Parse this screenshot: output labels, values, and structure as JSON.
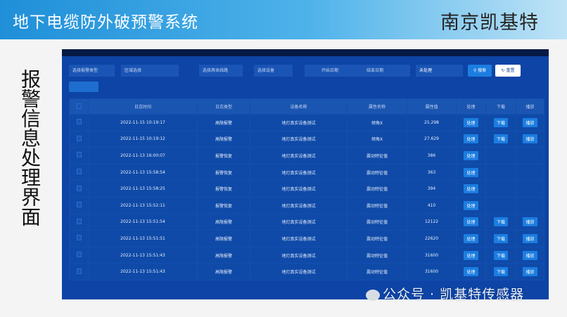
{
  "header": {
    "title": "地下电缆防外破预警系统",
    "brand": "南京凯基特"
  },
  "side_title": "报警信息处理界面",
  "filters": {
    "alarm_type": "选择报警类型",
    "region": "区域选择",
    "line": "选择具体线路",
    "device": "选择设备",
    "start_date": "开始日期",
    "end_date": "结束日期",
    "status": "未处理",
    "search": "搜索",
    "reset": "重置"
  },
  "table": {
    "columns": [
      "",
      "日志时间",
      "日志类型",
      "设备名称",
      "属性名称",
      "属性值",
      "处理",
      "下载",
      "播放"
    ],
    "action_labels": {
      "process": "处理",
      "download": "下载",
      "play": "播放"
    },
    "rows": [
      {
        "time": "2022-11-15 10:19:17",
        "type": "高限报警",
        "device": "地灯真实设备测试",
        "attr": "倾角X",
        "value": "25.298",
        "download": true
      },
      {
        "time": "2022-11-15 10:19:12",
        "type": "高限报警",
        "device": "地灯真实设备测试",
        "attr": "倾角X",
        "value": "27.629",
        "download": true
      },
      {
        "time": "2022-11-13 16:00:07",
        "type": "报警恢复",
        "device": "地灯真实设备测试",
        "attr": "震动特征值",
        "value": "386",
        "download": false
      },
      {
        "time": "2022-11-13 15:58:54",
        "type": "报警恢复",
        "device": "地灯真实设备测试",
        "attr": "震动特征值",
        "value": "363",
        "download": false
      },
      {
        "time": "2022-11-13 15:58:25",
        "type": "报警恢复",
        "device": "地灯真实设备测试",
        "attr": "震动特征值",
        "value": "394",
        "download": false
      },
      {
        "time": "2022-11-13 15:52:11",
        "type": "报警恢复",
        "device": "地灯真实设备测试",
        "attr": "震动特征值",
        "value": "410",
        "download": false
      },
      {
        "time": "2022-11-13 15:51:54",
        "type": "高限报警",
        "device": "地灯真实设备测试",
        "attr": "震动特征值",
        "value": "12122",
        "download": true
      },
      {
        "time": "2022-11-13 15:51:51",
        "type": "高限报警",
        "device": "地灯真实设备测试",
        "attr": "震动特征值",
        "value": "22620",
        "download": true
      },
      {
        "time": "2022-11-13 15:51:43",
        "type": "高限报警",
        "device": "地灯真实设备测试",
        "attr": "震动特征值",
        "value": "31600",
        "download": true
      },
      {
        "time": "2022-11-13 15:51:43",
        "type": "高限报警",
        "device": "地灯真实设备测试",
        "attr": "震动特征值",
        "value": "31600",
        "download": true
      }
    ]
  },
  "watermark": "公众号 · 凯基特传感器"
}
